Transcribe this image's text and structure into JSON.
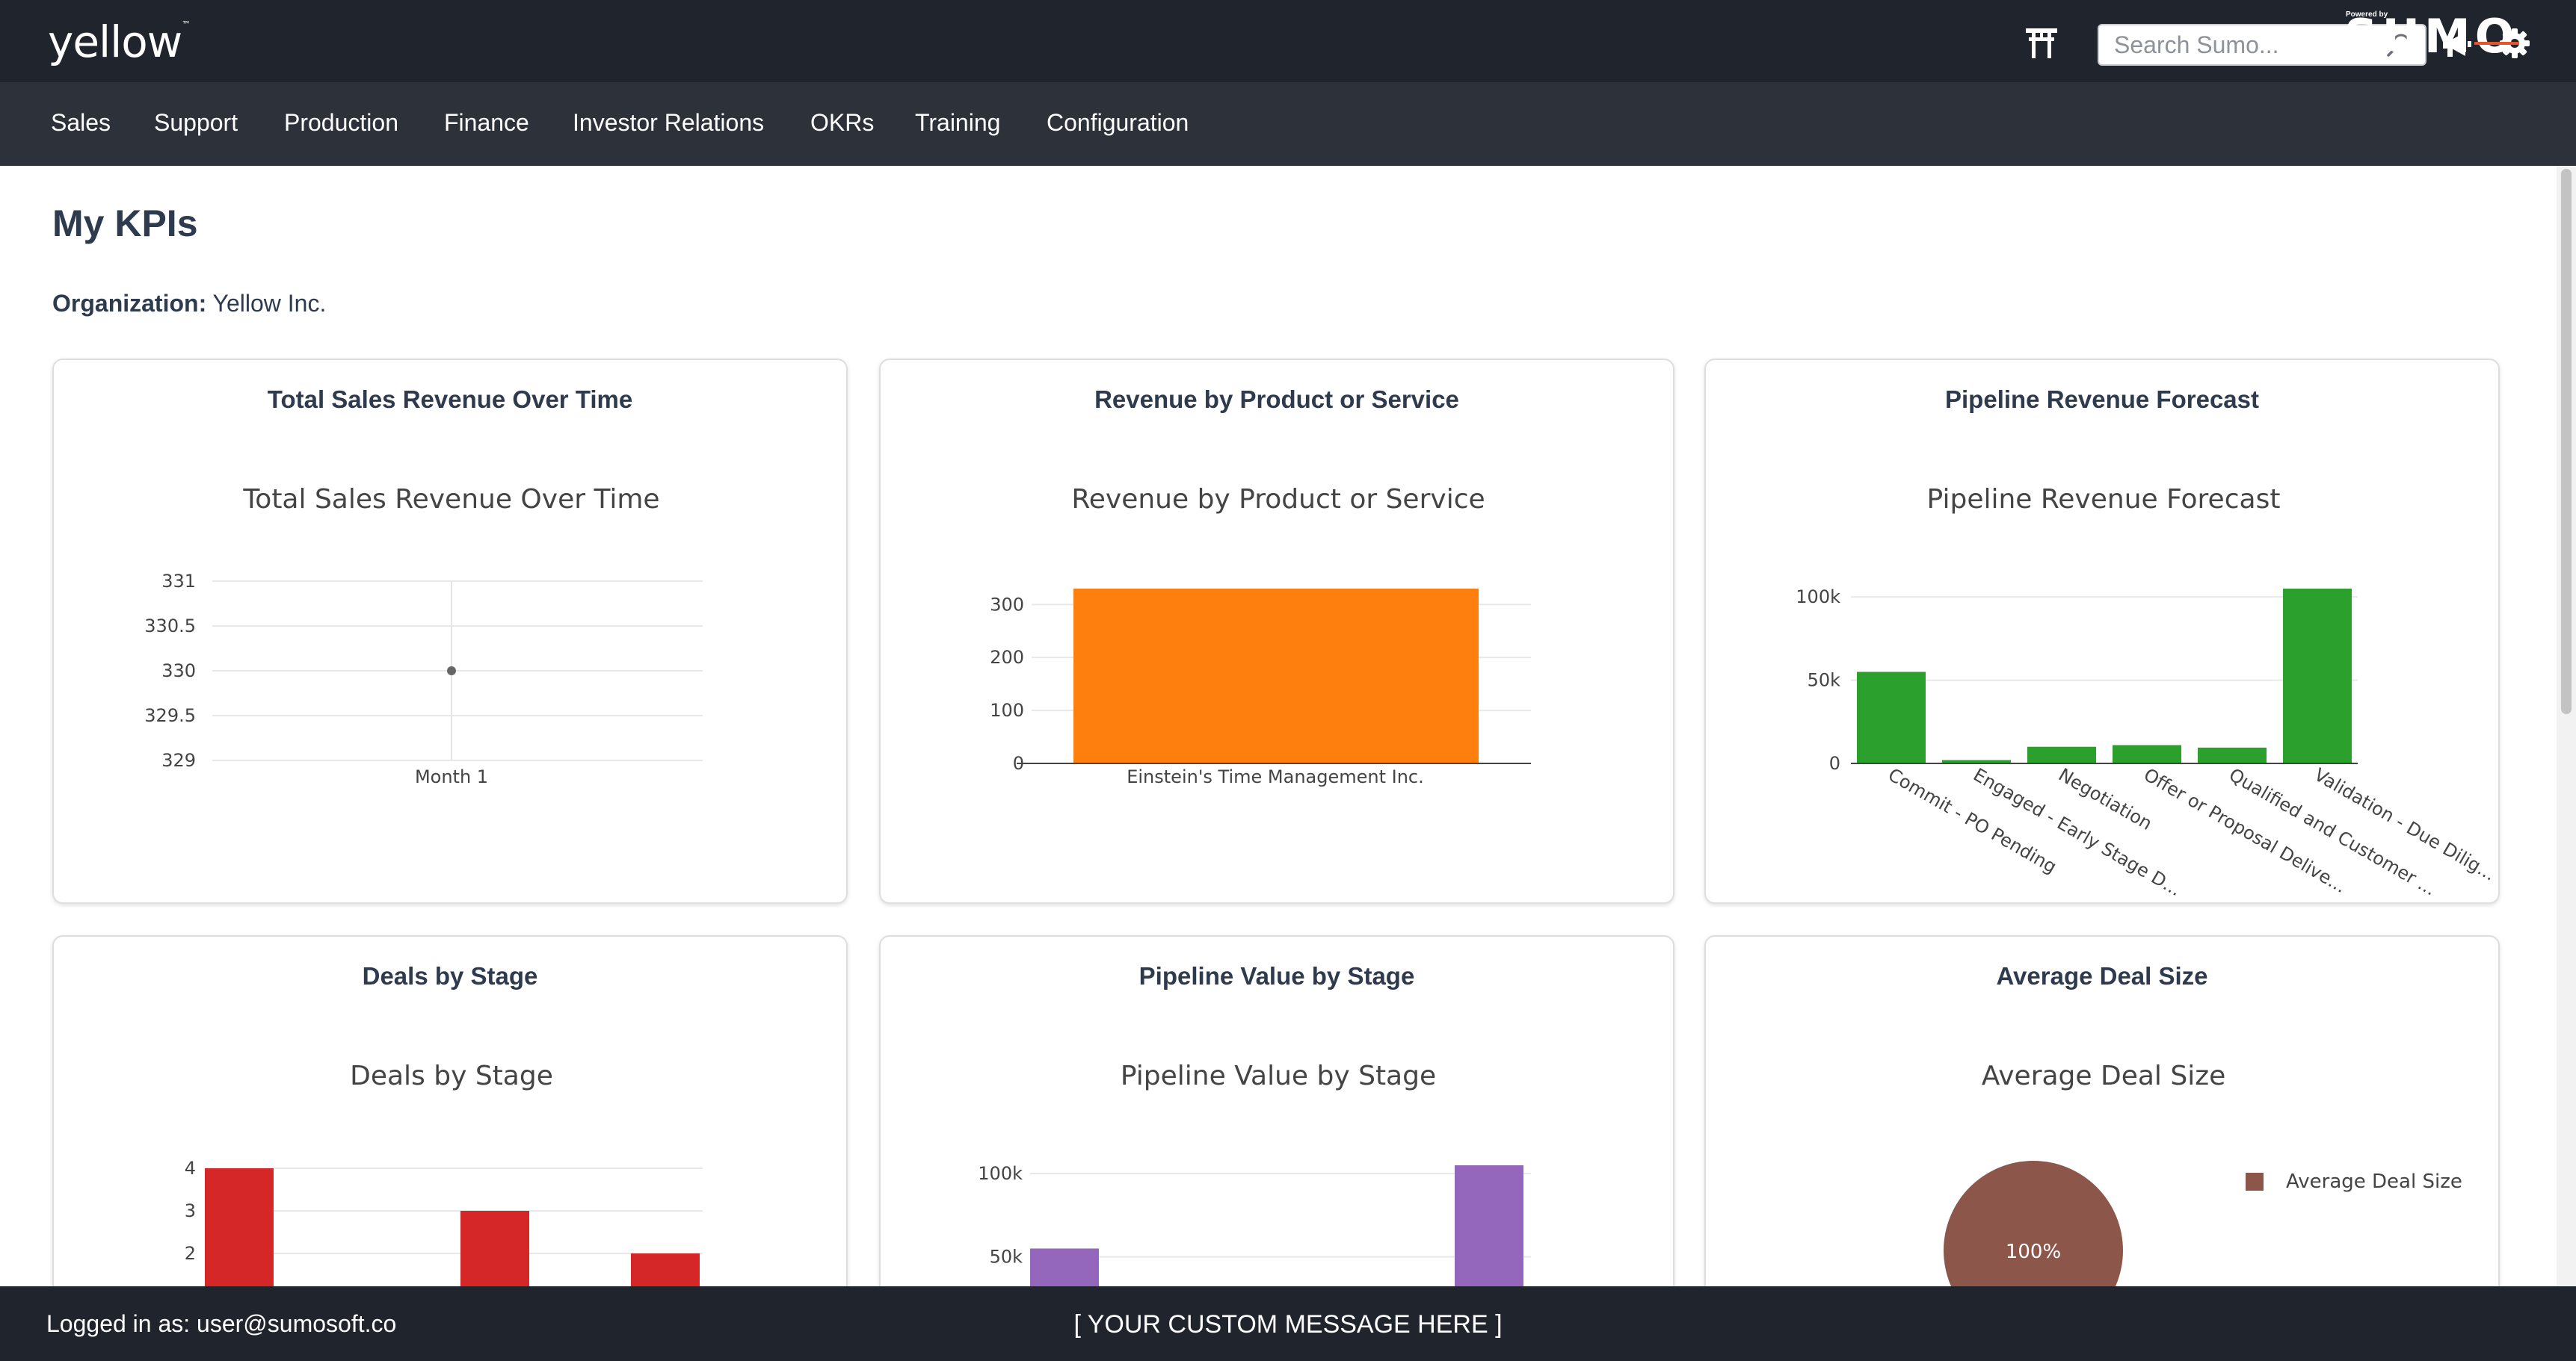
{
  "header": {
    "logo_text": "yellow",
    "logo_mark": "™",
    "search_placeholder": "Search Sumo...",
    "icons": [
      "torii-gate-icon",
      "search-icon",
      "megaphone-icon",
      "gear-icon"
    ]
  },
  "nav": {
    "items": [
      "Sales",
      "Support",
      "Production",
      "Finance",
      "Investor Relations",
      "OKRs",
      "Training",
      "Configuration"
    ]
  },
  "page": {
    "title": "My KPIs",
    "org_label": "Organization:",
    "org_value": "Yellow Inc."
  },
  "cards": [
    {
      "title": "Total Sales Revenue Over Time"
    },
    {
      "title": "Revenue by Product or Service"
    },
    {
      "title": "Pipeline Revenue Forecast"
    },
    {
      "title": "Deals by Stage"
    },
    {
      "title": "Pipeline Value by Stage"
    },
    {
      "title": "Average Deal Size"
    }
  ],
  "chart_data": [
    {
      "type": "scatter",
      "title": "Total Sales Revenue Over Time",
      "x": [
        "Month 1"
      ],
      "y": [
        330
      ],
      "ylim": [
        329,
        331
      ],
      "yticks": [
        "331",
        "330.5",
        "330",
        "329.5",
        "329"
      ],
      "grid": true,
      "color": "#666666"
    },
    {
      "type": "bar",
      "title": "Revenue by Product or Service",
      "categories": [
        "Einstein's Time Management Inc."
      ],
      "values": [
        330
      ],
      "ylim": [
        0,
        330
      ],
      "yticks": [
        "300",
        "200",
        "100",
        "0"
      ],
      "grid": true,
      "color": "#ff7f0e"
    },
    {
      "type": "bar",
      "title": "Pipeline Revenue Forecast",
      "categories": [
        "Commit - PO Pending",
        "Engaged - Early Stage D...",
        "Negotiation",
        "Offer or Proposal Delive...",
        "Qualified and Customer ...",
        "Validation - Due Dilig..."
      ],
      "values": [
        55000,
        2000,
        10000,
        11000,
        9500,
        105000
      ],
      "ylim": [
        0,
        105000
      ],
      "yticks": [
        "100k",
        "50k",
        "0"
      ],
      "grid": true,
      "color": "#2ca02c"
    },
    {
      "type": "bar",
      "title": "Deals by Stage",
      "values": [
        4,
        3,
        2
      ],
      "ylim": [
        1,
        4
      ],
      "yticks": [
        "4",
        "3",
        "2"
      ],
      "grid": true,
      "color": "#d62728"
    },
    {
      "type": "bar",
      "title": "Pipeline Value by Stage",
      "values": [
        55000,
        105000
      ],
      "ylim": [
        0,
        105000
      ],
      "yticks": [
        "100k",
        "50k"
      ],
      "grid": true,
      "color": "#9467bd"
    },
    {
      "type": "pie",
      "title": "Average Deal Size",
      "labels": [
        "Average Deal Size"
      ],
      "values": [
        100
      ],
      "slice_label": "100%",
      "legend": "top-right",
      "color": "#8c564b"
    }
  ],
  "footer": {
    "logged_in": "Logged in as: user@sumosoft.co",
    "custom_message": "[ YOUR CUSTOM MESSAGE HERE ]",
    "powered_by": "Powered by",
    "brand": "SUMO"
  }
}
